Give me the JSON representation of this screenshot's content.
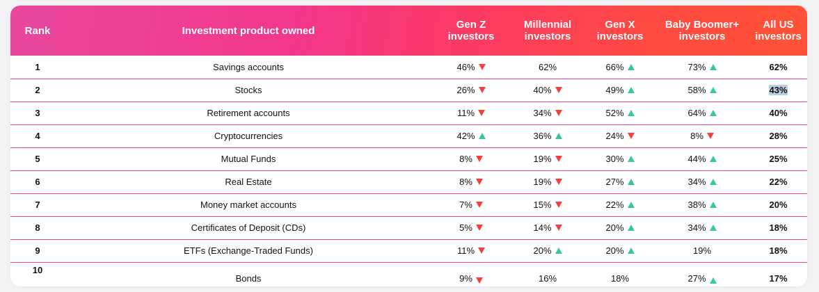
{
  "columns": [
    {
      "key": "rank",
      "label": "Rank"
    },
    {
      "key": "product",
      "label": "Investment product owned"
    },
    {
      "key": "genz",
      "label": "Gen Z\ninvestors"
    },
    {
      "key": "millennial",
      "label": "Millennial\ninvestors"
    },
    {
      "key": "genx",
      "label": "Gen X\ninvestors"
    },
    {
      "key": "boomer",
      "label": "Baby Boomer+\ninvestors"
    },
    {
      "key": "all",
      "label": "All US\ninvestors"
    }
  ],
  "colors": {
    "up": "#35c79f",
    "down": "#f2403c",
    "divider": "#e3428f",
    "header_start": "#e7489c",
    "header_end": "#ff5236"
  },
  "rows": [
    {
      "rank": "1",
      "product": "Savings accounts",
      "genz": {
        "value": "46%",
        "trend": "down"
      },
      "millennial": {
        "value": "62%",
        "trend": "none"
      },
      "genx": {
        "value": "66%",
        "trend": "up"
      },
      "boomer": {
        "value": "73%",
        "trend": "up"
      },
      "all": "62%"
    },
    {
      "rank": "2",
      "product": "Stocks",
      "genz": {
        "value": "26%",
        "trend": "down"
      },
      "millennial": {
        "value": "40%",
        "trend": "down"
      },
      "genx": {
        "value": "49%",
        "trend": "up"
      },
      "boomer": {
        "value": "58%",
        "trend": "up"
      },
      "all": "43%"
    },
    {
      "rank": "3",
      "product": "Retirement accounts",
      "genz": {
        "value": "11%",
        "trend": "down"
      },
      "millennial": {
        "value": "34%",
        "trend": "down"
      },
      "genx": {
        "value": "52%",
        "trend": "up"
      },
      "boomer": {
        "value": "64%",
        "trend": "up"
      },
      "all": "40%"
    },
    {
      "rank": "4",
      "product": "Cryptocurrencies",
      "genz": {
        "value": "42%",
        "trend": "up"
      },
      "millennial": {
        "value": "36%",
        "trend": "up"
      },
      "genx": {
        "value": "24%",
        "trend": "down"
      },
      "boomer": {
        "value": "8%",
        "trend": "down"
      },
      "all": "28%"
    },
    {
      "rank": "5",
      "product": "Mutual Funds",
      "genz": {
        "value": "8%",
        "trend": "down"
      },
      "millennial": {
        "value": "19%",
        "trend": "down"
      },
      "genx": {
        "value": "30%",
        "trend": "up"
      },
      "boomer": {
        "value": "44%",
        "trend": "up"
      },
      "all": "25%"
    },
    {
      "rank": "6",
      "product": "Real Estate",
      "genz": {
        "value": "8%",
        "trend": "down"
      },
      "millennial": {
        "value": "19%",
        "trend": "down"
      },
      "genx": {
        "value": "27%",
        "trend": "up"
      },
      "boomer": {
        "value": "34%",
        "trend": "up"
      },
      "all": "22%"
    },
    {
      "rank": "7",
      "product": "Money market accounts",
      "genz": {
        "value": "7%",
        "trend": "down"
      },
      "millennial": {
        "value": "15%",
        "trend": "down"
      },
      "genx": {
        "value": "22%",
        "trend": "up"
      },
      "boomer": {
        "value": "38%",
        "trend": "up"
      },
      "all": "20%"
    },
    {
      "rank": "8",
      "product": "Certificates of Deposit (CDs)",
      "genz": {
        "value": "5%",
        "trend": "down"
      },
      "millennial": {
        "value": "14%",
        "trend": "down"
      },
      "genx": {
        "value": "20%",
        "trend": "up"
      },
      "boomer": {
        "value": "34%",
        "trend": "up"
      },
      "all": "18%"
    },
    {
      "rank": "9",
      "product": "ETFs (Exchange-Traded Funds)",
      "genz": {
        "value": "11%",
        "trend": "down"
      },
      "millennial": {
        "value": "20%",
        "trend": "up"
      },
      "genx": {
        "value": "20%",
        "trend": "up"
      },
      "boomer": {
        "value": "19%",
        "trend": "none"
      },
      "all": "18%"
    },
    {
      "rank": "10",
      "product": "Bonds",
      "genz": {
        "value": "9%",
        "trend": "down"
      },
      "millennial": {
        "value": "16%",
        "trend": "none"
      },
      "genx": {
        "value": "18%",
        "trend": "none"
      },
      "boomer": {
        "value": "27%",
        "trend": "up"
      },
      "all": "17%"
    }
  ]
}
